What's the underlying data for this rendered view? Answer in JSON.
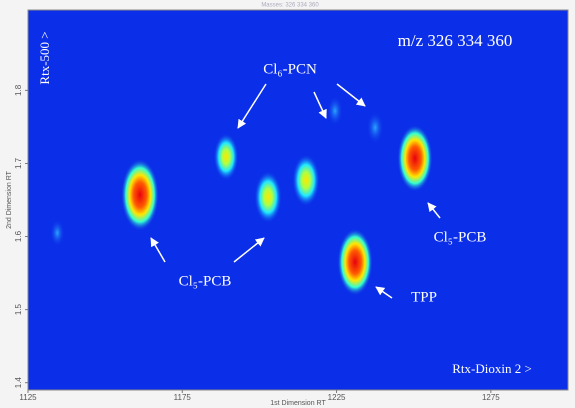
{
  "chart_data": {
    "type": "contour",
    "title": "Masses: 326 334 360",
    "x_label": "1st Dimension RT",
    "y_label": "2nd Dimension RT",
    "xlim": [
      1125,
      1300
    ],
    "ylim": [
      1.39,
      1.91
    ],
    "xticks": [
      1125,
      1175,
      1225,
      1275
    ],
    "yticks": [
      1.4,
      1.5,
      1.6,
      1.7,
      1.8
    ],
    "background_color": "#0b2ee8",
    "peaks": {
      "x": [
        1161.3,
        1189.2,
        1202.8,
        1215.1,
        1231.0,
        1250.4,
        1237.5,
        1224.5,
        1134.5
      ],
      "y": [
        1.657,
        1.709,
        1.654,
        1.677,
        1.565,
        1.707,
        1.749,
        1.772,
        1.605
      ],
      "intensity": [
        10,
        5,
        6,
        6,
        9,
        9,
        2,
        1.5,
        1
      ]
    },
    "annotations": {
      "mz": "m/z 326 334 360",
      "column1": "Rtx-500 >",
      "column2": "Rtx-Dioxin 2 >",
      "pcn": "Cl₆-PCN",
      "pcb_left": "Cl₅-PCB",
      "pcb_right": "Cl₅-PCB",
      "tpp": "TPP"
    }
  }
}
